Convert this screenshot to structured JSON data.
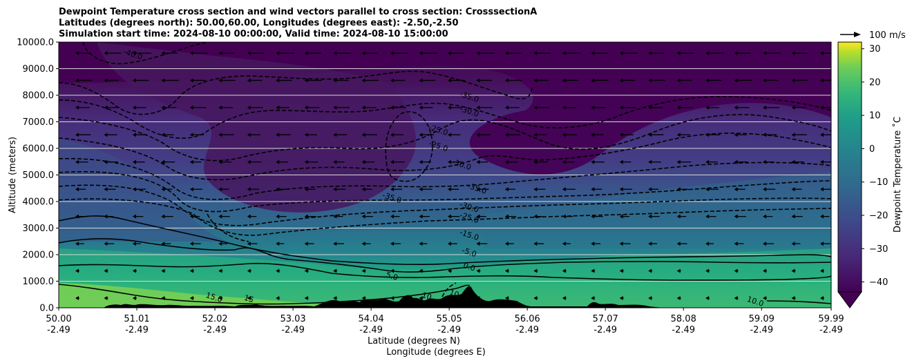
{
  "chart_data": {
    "type": "heatmap",
    "title_lines": [
      "Dewpoint Temperature cross section and wind vectors parallel to cross section: CrosssectionA",
      "Latitudes (degrees north): 50.00,60.00, Longitudes (degrees east): -2.50,-2.50",
      "Simulation start time: 2024-08-10 00:00:00, Valid time: 2024-08-10 15:00:00"
    ],
    "ylabel": "Altitude (meters)",
    "xlabel_lines": [
      "Latitude (degrees N)",
      "Longitude (degrees E)"
    ],
    "ylim": [
      0,
      10000
    ],
    "xlim": [
      50.0,
      59.99
    ],
    "y_ticks": [
      "0.0",
      "1000.0",
      "2000.0",
      "3000.0",
      "4000.0",
      "5000.0",
      "6000.0",
      "7000.0",
      "8000.0",
      "9000.0",
      "10000.0"
    ],
    "x_ticks": [
      {
        "lat": "50.00",
        "lon": "-2.49"
      },
      {
        "lat": "51.01",
        "lon": "-2.49"
      },
      {
        "lat": "52.02",
        "lon": "-2.49"
      },
      {
        "lat": "53.03",
        "lon": "-2.49"
      },
      {
        "lat": "54.04",
        "lon": "-2.49"
      },
      {
        "lat": "55.05",
        "lon": "-2.49"
      },
      {
        "lat": "56.06",
        "lon": "-2.49"
      },
      {
        "lat": "57.07",
        "lon": "-2.49"
      },
      {
        "lat": "58.08",
        "lon": "-2.49"
      },
      {
        "lat": "59.09",
        "lon": "-2.49"
      },
      {
        "lat": "59.99",
        "lon": "-2.49"
      }
    ],
    "grid": "horizontal",
    "colorbar": {
      "label": "Dewpoint Temperature ˚C",
      "range": [
        -43,
        32
      ],
      "ticks": [
        "30",
        "20",
        "10",
        "0",
        "−10",
        "−20",
        "−30",
        "−40"
      ],
      "tick_values": [
        30,
        20,
        10,
        0,
        -10,
        -20,
        -30,
        -40
      ],
      "extend": "min",
      "colormap": "viridis"
    },
    "wind_key_label": "100 m/s",
    "contour_labels": [
      {
        "text": "-40.0",
        "lat": 50.95,
        "alt": 9450
      },
      {
        "text": "-35.0",
        "lat": 55.3,
        "alt": 7850
      },
      {
        "text": "-30.0",
        "lat": 55.3,
        "alt": 7300
      },
      {
        "text": "-25.0",
        "lat": 54.9,
        "alt": 6600
      },
      {
        "text": "-25.0",
        "lat": 54.9,
        "alt": 6000
      },
      {
        "text": "-30.0",
        "lat": 55.2,
        "alt": 5300
      },
      {
        "text": "-35.0",
        "lat": 55.4,
        "alt": 4400
      },
      {
        "text": "-35.0",
        "lat": 54.3,
        "alt": 4050
      },
      {
        "text": "-30.0",
        "lat": 55.3,
        "alt": 3700
      },
      {
        "text": "-25.0",
        "lat": 55.3,
        "alt": 3300
      },
      {
        "text": "-15.0",
        "lat": 55.3,
        "alt": 2650
      },
      {
        "text": "-5.0",
        "lat": 55.3,
        "alt": 2000
      },
      {
        "text": "0.0",
        "lat": 55.3,
        "alt": 1450
      },
      {
        "text": "5.0",
        "lat": 54.3,
        "alt": 1100
      },
      {
        "text": "15.0",
        "lat": 52.0,
        "alt": 300
      },
      {
        "text": "15",
        "lat": 52.45,
        "alt": 250
      },
      {
        "text": "10",
        "lat": 54.75,
        "alt": 350
      },
      {
        "text": "10.0",
        "lat": 55.15,
        "alt": 400
      },
      {
        "text": "10.0",
        "lat": 59.0,
        "alt": 150
      }
    ]
  }
}
